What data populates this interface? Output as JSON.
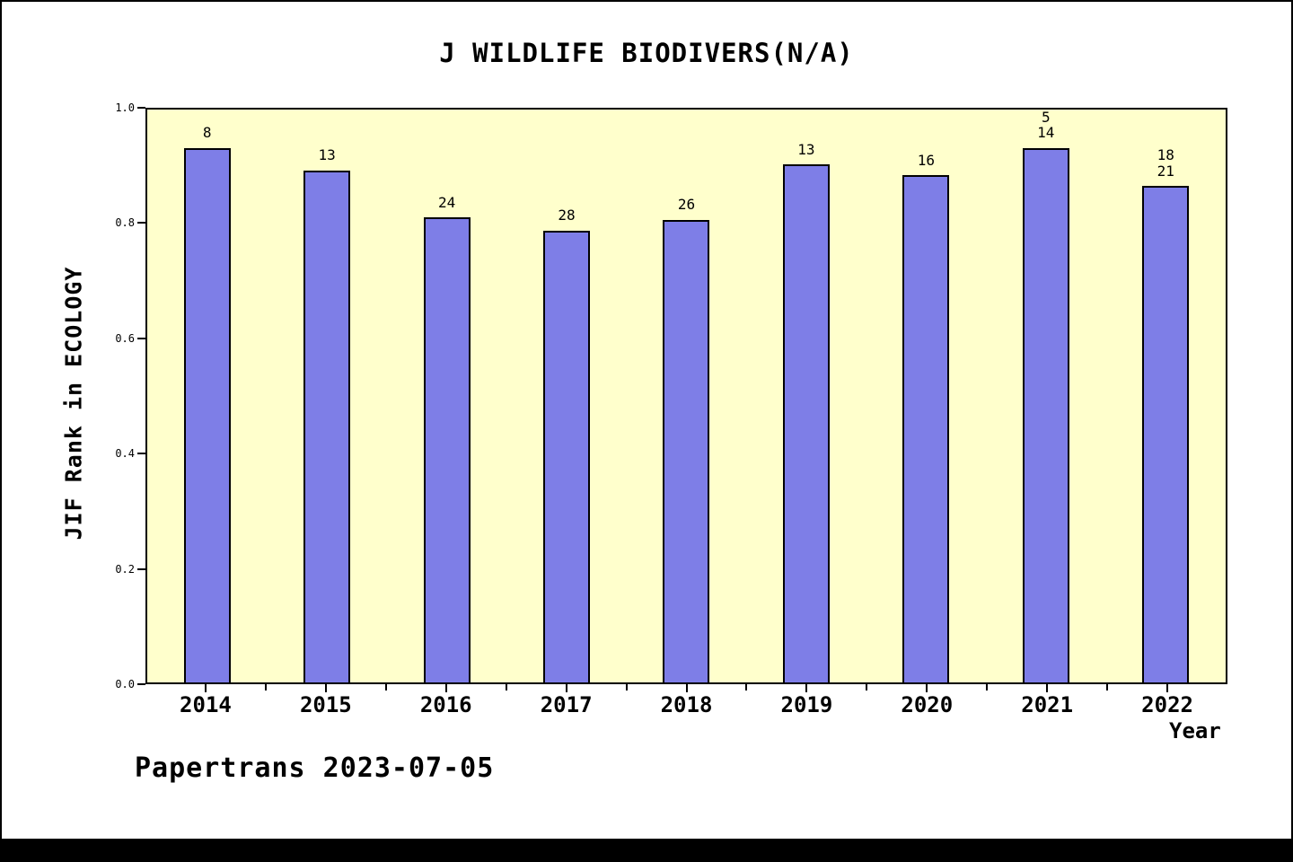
{
  "title": "J WILDLIFE BIODIVERS(N/A)",
  "footer": "Papertrans 2023-07-05",
  "colors": {
    "bar": "#7e7ee7",
    "bar_edge": "#000000",
    "plot_bg": "#ffffcc",
    "axis": "#000000"
  },
  "chart_data": {
    "type": "bar",
    "title": "J WILDLIFE BIODIVERS(N/A)",
    "xlabel": "Year",
    "ylabel": "JIF Rank in ECOLOGY",
    "categories": [
      "2014",
      "2015",
      "2016",
      "2017",
      "2018",
      "2019",
      "2020",
      "2021",
      "2022"
    ],
    "values": [
      0.933,
      0.894,
      0.812,
      0.789,
      0.808,
      0.904,
      0.885,
      0.961,
      0.867
    ],
    "bar_labels": [
      [
        "8"
      ],
      [
        "13"
      ],
      [
        "24"
      ],
      [
        "28"
      ],
      [
        "26"
      ],
      [
        "13"
      ],
      [
        "16"
      ],
      [
        "5",
        "14"
      ],
      [
        "18",
        "21"
      ]
    ],
    "ylim": [
      0.0,
      1.0
    ],
    "yticks": [
      "0.0",
      "0.2",
      "0.4",
      "0.6",
      "0.8",
      "1.0"
    ],
    "grid": false,
    "legend": null
  }
}
